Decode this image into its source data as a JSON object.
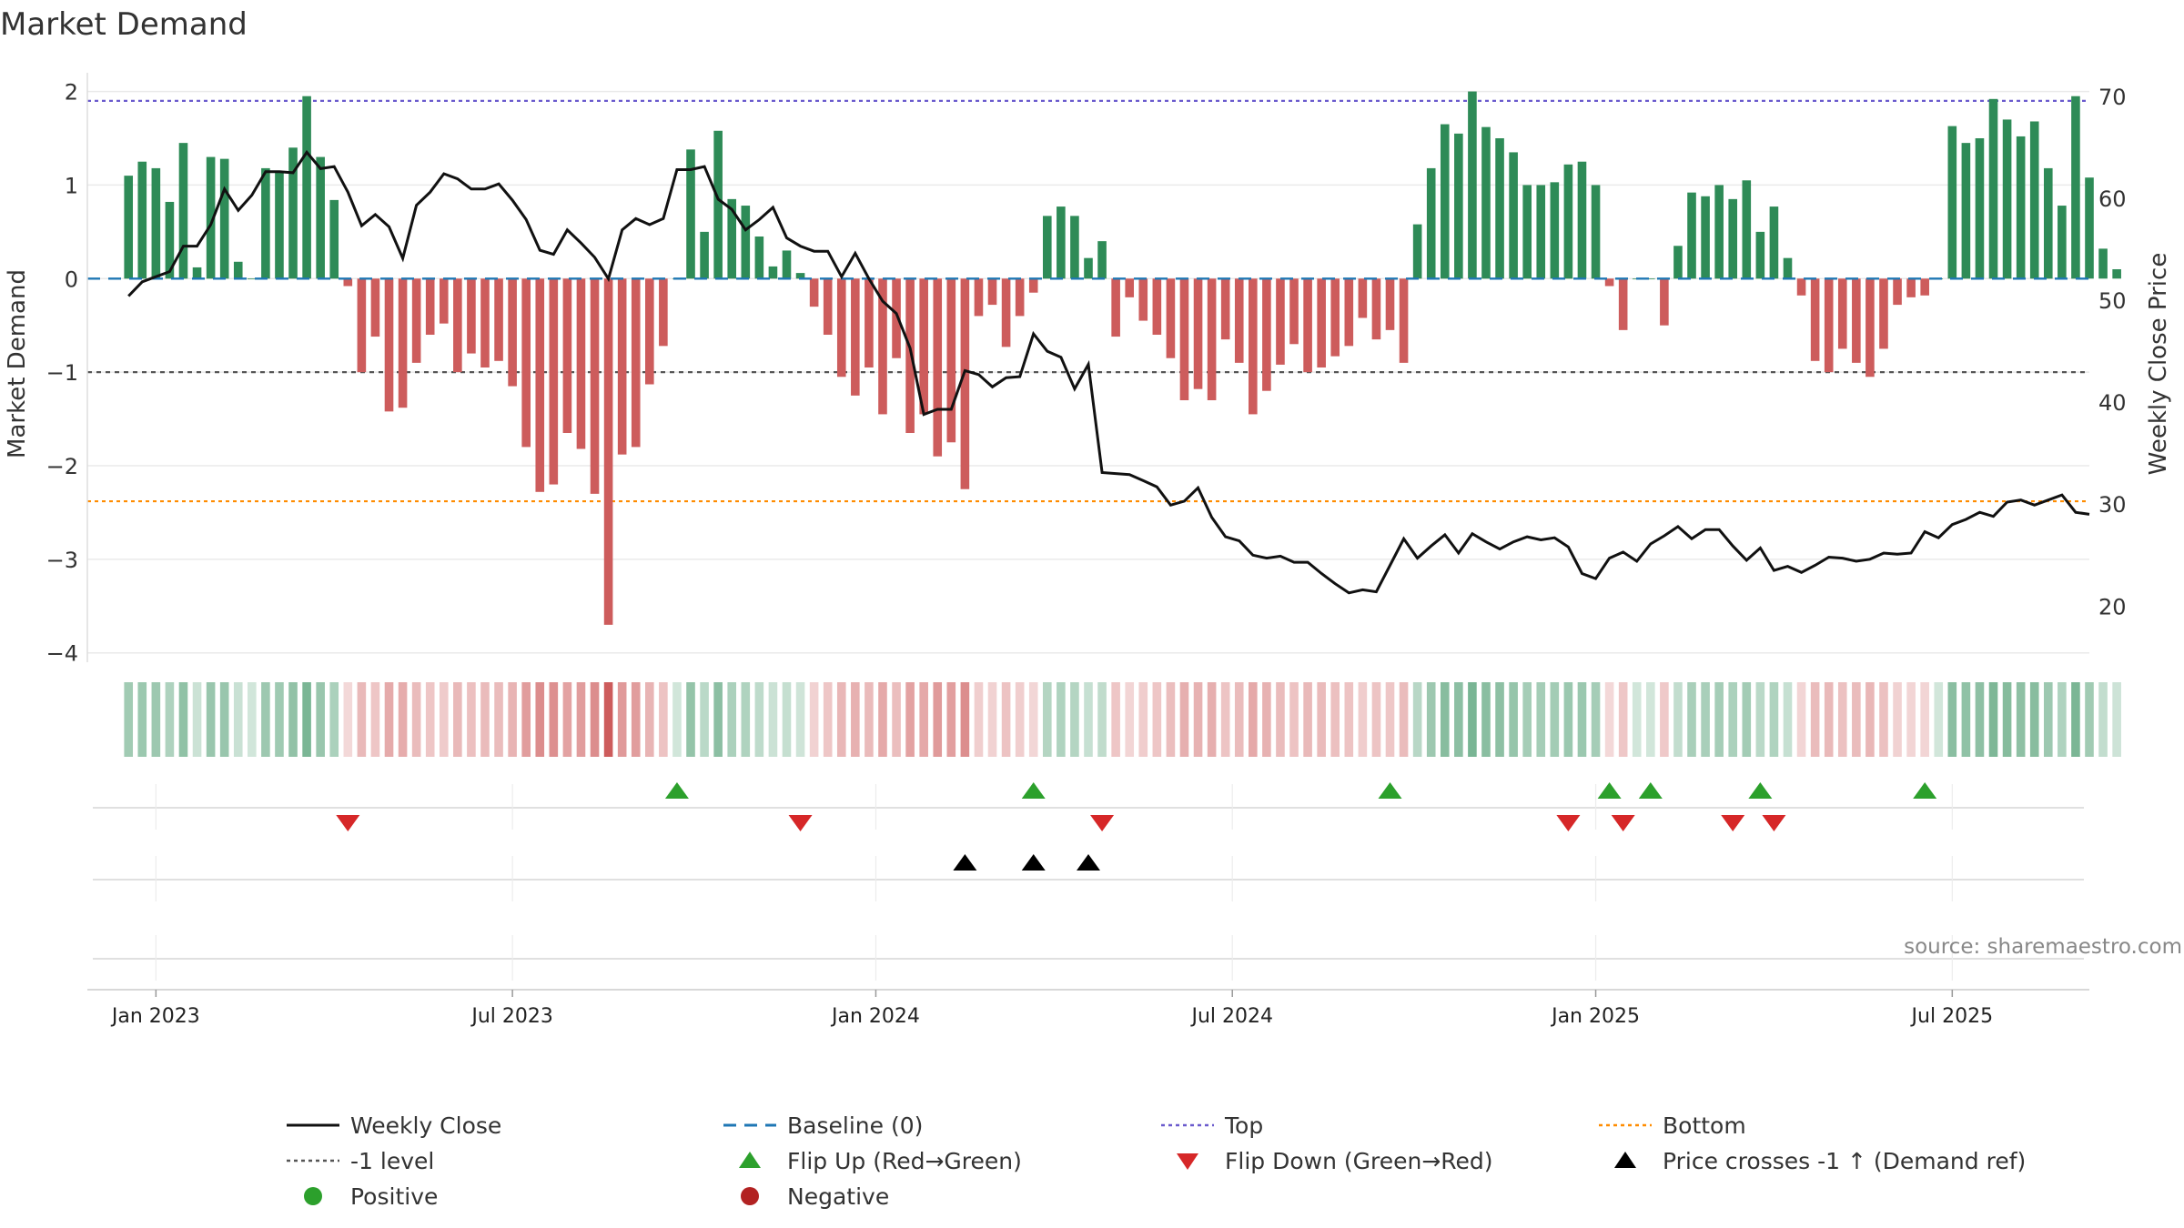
{
  "chart_data": {
    "type": "bar",
    "title": "Market Demand",
    "ylabel": "Market Demand",
    "y2label": "Weekly Close Price",
    "ylim": [
      -4.1,
      2.2
    ],
    "y2lim": [
      14.5,
      72.3
    ],
    "yticks": [
      -4,
      -3,
      -2,
      -1,
      0,
      1,
      2
    ],
    "y2ticks": [
      20,
      30,
      40,
      50,
      60,
      70
    ],
    "yticklabels": [
      "−4",
      "−3",
      "−2",
      "−1",
      "0",
      "1",
      "2"
    ],
    "y2ticklabels": [
      "20",
      "30",
      "40",
      "50",
      "60",
      "70"
    ],
    "x_range": [
      -3,
      143
    ],
    "xticks": [
      2,
      28,
      54.5,
      80.5,
      107,
      133
    ],
    "xticklabels": [
      "Jan 2023",
      "Jul 2023",
      "Jan 2024",
      "Jul 2024",
      "Jan 2025",
      "Jul 2025"
    ],
    "weeks": 145,
    "demand": [
      1.1,
      1.25,
      1.18,
      0.82,
      1.45,
      0.12,
      1.3,
      1.28,
      0.18,
      0.0,
      1.18,
      1.15,
      1.4,
      1.95,
      1.3,
      0.84,
      -0.08,
      -1.0,
      -0.62,
      -1.42,
      -1.38,
      -0.9,
      -0.6,
      -0.48,
      -1.0,
      -0.8,
      -0.95,
      -0.88,
      -1.15,
      -1.8,
      -2.28,
      -2.2,
      -1.65,
      -1.82,
      -2.3,
      -3.7,
      -1.88,
      -1.8,
      -1.13,
      -0.72,
      0.0,
      1.38,
      0.5,
      1.58,
      0.85,
      0.78,
      0.45,
      0.13,
      0.3,
      0.06,
      -0.3,
      -0.6,
      -1.05,
      -1.25,
      -0.95,
      -1.45,
      -0.85,
      -1.65,
      -1.45,
      -1.9,
      -1.75,
      -2.25,
      -0.4,
      -0.28,
      -0.73,
      -0.4,
      -0.15,
      0.67,
      0.77,
      0.67,
      0.22,
      0.4,
      -0.62,
      -0.2,
      -0.45,
      -0.6,
      -0.85,
      -1.3,
      -1.18,
      -1.3,
      -0.65,
      -0.9,
      -1.45,
      -1.2,
      -0.92,
      -0.7,
      -1.0,
      -0.95,
      -0.83,
      -0.72,
      -0.42,
      -0.65,
      -0.55,
      -0.9,
      0.58,
      1.18,
      1.65,
      1.55,
      2.0,
      1.62,
      1.5,
      1.35,
      1.0,
      1.0,
      1.03,
      1.22,
      1.25,
      1.0,
      -0.08,
      -0.55,
      0.0,
      0.0,
      -0.5,
      0.35,
      0.92,
      0.88,
      1.0,
      0.85,
      1.05,
      0.5,
      0.77,
      0.22,
      -0.18,
      -0.88,
      -1.0,
      -0.75,
      -0.9,
      -1.05,
      -0.75,
      -0.28,
      -0.2,
      -0.18,
      0.0,
      1.63,
      1.45,
      1.5,
      1.92,
      1.7,
      1.52,
      1.68,
      1.18,
      0.78,
      1.95,
      1.08,
      0.32,
      0.1
    ],
    "close": [
      50.4,
      51.8,
      52.3,
      52.8,
      55.3,
      55.3,
      57.4,
      60.9,
      58.8,
      60.3,
      62.6,
      62.6,
      62.5,
      64.5,
      62.9,
      63.1,
      60.6,
      57.3,
      58.4,
      57.2,
      54.1,
      59.3,
      60.6,
      62.4,
      61.9,
      60.9,
      60.9,
      61.4,
      59.8,
      57.9,
      54.9,
      54.5,
      56.9,
      55.6,
      54.2,
      52.1,
      56.9,
      58.0,
      57.4,
      58.0,
      62.8,
      62.8,
      63.1,
      59.9,
      58.9,
      56.9,
      57.9,
      59.1,
      56.1,
      55.3,
      54.8,
      54.8,
      52.3,
      54.6,
      52.1,
      49.9,
      48.7,
      45.3,
      38.8,
      39.3,
      39.3,
      43.1,
      42.7,
      41.5,
      42.4,
      42.5,
      46.7,
      45.0,
      44.4,
      41.3,
      43.7,
      33.1,
      33.0,
      32.9,
      32.3,
      31.7,
      29.9,
      30.3,
      31.6,
      28.7,
      26.8,
      26.4,
      25.0,
      24.7,
      24.9,
      24.3,
      24.3,
      23.2,
      22.2,
      21.3,
      21.6,
      21.4,
      24.0,
      26.6,
      24.7,
      25.9,
      27.0,
      25.2,
      27.1,
      26.3,
      25.6,
      26.3,
      26.8,
      26.5,
      26.7,
      25.8,
      23.2,
      22.7,
      24.7,
      25.3,
      24.4,
      26.1,
      26.9,
      27.8,
      26.6,
      27.5,
      27.5,
      25.9,
      24.5,
      25.7,
      23.5,
      23.9,
      23.3,
      24.0,
      24.8,
      24.7,
      24.4,
      24.6,
      25.2,
      25.1,
      25.2,
      27.3,
      26.7,
      28.0,
      28.5,
      29.2,
      28.8,
      30.2,
      30.4,
      29.9,
      30.4,
      30.9,
      29.2,
      29.0
    ],
    "bottom_strip_note": "weekly demand heat strip (same values as demand)",
    "reference_lines": [
      {
        "name": "Top",
        "value": 1.9,
        "color": "#6a5acd"
      },
      {
        "name": "Bottom",
        "value": -2.38,
        "color": "#ff8c00"
      },
      {
        "name": "-1 level",
        "value": -1,
        "color": "#555555"
      },
      {
        "name": "Baseline (0)",
        "value": 0,
        "color": "#1f77b4"
      }
    ],
    "flip_up_weeks": [
      40,
      66,
      92,
      108,
      111,
      119,
      131
    ],
    "flip_down_weeks": [
      16,
      49,
      71,
      105,
      109,
      117,
      120
    ],
    "price_cross_weeks": [
      61,
      66,
      70
    ],
    "colors": {
      "positive": "#2e8b57",
      "negative": "#cd5c5c",
      "flip_up": "#2ca02c",
      "flip_down": "#d62728",
      "cross": "#000000",
      "price_line": "#111111",
      "legend_positive": "#2ca02c",
      "legend_negative": "#b22222"
    },
    "source": "source: sharemaestro.com",
    "legend": [
      {
        "label": "Weekly Close",
        "icon": "solid-line",
        "color": "#111111"
      },
      {
        "label": "Baseline (0)",
        "icon": "dashed-line",
        "color": "#1f77b4"
      },
      {
        "label": "Top",
        "icon": "dotted-line",
        "color": "#6a5acd"
      },
      {
        "label": "Bottom",
        "icon": "dotted-line",
        "color": "#ff8c00"
      },
      {
        "label": "-1 level",
        "icon": "dotted-line",
        "color": "#555555"
      },
      {
        "label": "Flip Up (Red→Green)",
        "icon": "triangle-up",
        "color": "#2ca02c"
      },
      {
        "label": "Flip Down (Green→Red)",
        "icon": "triangle-down",
        "color": "#d62728"
      },
      {
        "label": "Price crosses -1 ↑ (Demand ref)",
        "icon": "triangle-up",
        "color": "#000000"
      },
      {
        "label": "Positive",
        "icon": "circle",
        "color": "#2ca02c"
      },
      {
        "label": "Negative",
        "icon": "circle",
        "color": "#b22222"
      }
    ]
  }
}
